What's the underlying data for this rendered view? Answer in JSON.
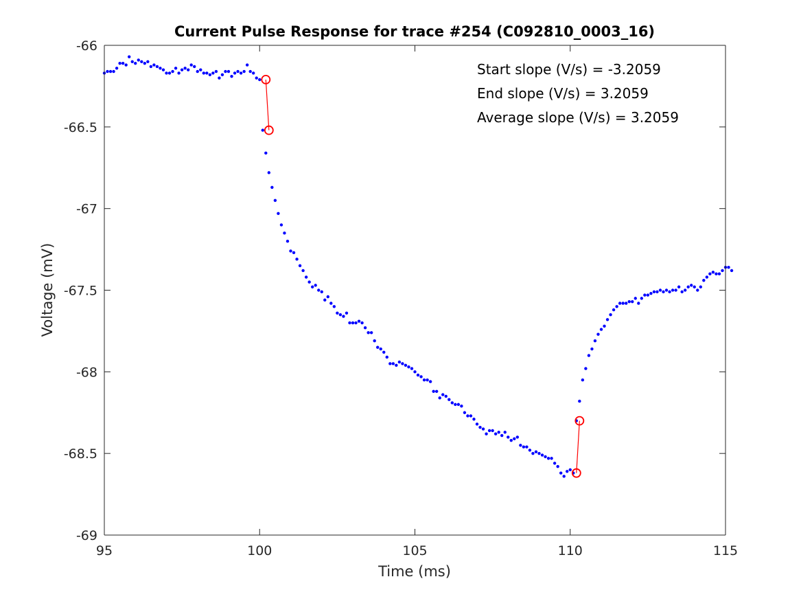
{
  "chart_data": {
    "type": "scatter",
    "title": "Current Pulse Response for trace #254 (C092810_0003_16)",
    "xlabel": "Time (ms)",
    "ylabel": "Voltage (mV)",
    "xlim": [
      95,
      115
    ],
    "ylim": [
      -69,
      -66
    ],
    "xticks": [
      95,
      100,
      105,
      110,
      115
    ],
    "yticks": [
      -69,
      -68.5,
      -68,
      -67.5,
      -67,
      -66.5,
      -66
    ],
    "xtick_labels": [
      "95",
      "100",
      "105",
      "110",
      "115"
    ],
    "ytick_labels": [
      "-69",
      "-68.5",
      "-68",
      "-67.5",
      "-67",
      "-66.5",
      "-66"
    ],
    "grid": false,
    "annotations": [
      "Start slope (V/s) = -3.2059",
      "End slope (V/s) = 3.2059",
      "Average slope (V/s) = 3.2059"
    ],
    "series_color": "#0000ff",
    "marker_color": "#ff0000",
    "trace": {
      "x_start": 95.0,
      "x_step": 0.1,
      "y": [
        -66.17,
        -66.16,
        -66.16,
        -66.16,
        -66.14,
        -66.11,
        -66.11,
        -66.12,
        -66.07,
        -66.1,
        -66.11,
        -66.09,
        -66.1,
        -66.11,
        -66.1,
        -66.13,
        -66.12,
        -66.13,
        -66.14,
        -66.15,
        -66.17,
        -66.17,
        -66.16,
        -66.14,
        -66.17,
        -66.15,
        -66.14,
        -66.15,
        -66.12,
        -66.13,
        -66.16,
        -66.15,
        -66.17,
        -66.17,
        -66.18,
        -66.17,
        -66.16,
        -66.2,
        -66.18,
        -66.16,
        -66.16,
        -66.19,
        -66.17,
        -66.16,
        -66.17,
        -66.16,
        -66.12,
        -66.16,
        -66.17,
        -66.2,
        -66.21,
        -66.52,
        -66.66,
        -66.78,
        -66.87,
        -66.95,
        -67.03,
        -67.1,
        -67.15,
        -67.2,
        -67.26,
        -67.27,
        -67.31,
        -67.35,
        -67.38,
        -67.42,
        -67.45,
        -67.48,
        -67.47,
        -67.5,
        -67.51,
        -67.56,
        -67.54,
        -67.58,
        -67.6,
        -67.64,
        -67.65,
        -67.66,
        -67.64,
        -67.7,
        -67.7,
        -67.7,
        -67.69,
        -67.7,
        -67.73,
        -67.76,
        -67.76,
        -67.81,
        -67.85,
        -67.86,
        -67.88,
        -67.91,
        -67.95,
        -67.95,
        -67.96,
        -67.94,
        -67.95,
        -67.96,
        -67.97,
        -67.98,
        -68.0,
        -68.02,
        -68.03,
        -68.05,
        -68.05,
        -68.06,
        -68.12,
        -68.12,
        -68.16,
        -68.14,
        -68.15,
        -68.17,
        -68.19,
        -68.2,
        -68.2,
        -68.21,
        -68.25,
        -68.27,
        -68.27,
        -68.29,
        -68.32,
        -68.34,
        -68.35,
        -68.38,
        -68.36,
        -68.36,
        -68.38,
        -68.37,
        -68.39,
        -68.37,
        -68.4,
        -68.42,
        -68.41,
        -68.4,
        -68.45,
        -68.46,
        -68.46,
        -68.48,
        -68.5,
        -68.49,
        -68.5,
        -68.51,
        -68.52,
        -68.53,
        -68.53,
        -68.56,
        -68.58,
        -68.62,
        -68.64,
        -68.61,
        -68.6,
        -68.62,
        -68.3,
        -68.18,
        -68.05,
        -67.98,
        -67.9,
        -67.86,
        -67.81,
        -67.77,
        -67.74,
        -67.72,
        -67.68,
        -67.65,
        -67.62,
        -67.6,
        -67.58,
        -67.58,
        -67.58,
        -67.57,
        -67.57,
        -67.55,
        -67.58,
        -67.55,
        -67.53,
        -67.53,
        -67.52,
        -67.51,
        -67.51,
        -67.5,
        -67.51,
        -67.5,
        -67.51,
        -67.5,
        -67.5,
        -67.48,
        -67.51,
        -67.5,
        -67.48,
        -67.47,
        -67.48,
        -67.5,
        -67.48,
        -67.44,
        -67.42,
        -67.4,
        -67.39,
        -67.4,
        -67.4,
        -67.38,
        -67.36,
        -67.36,
        -67.38
      ]
    },
    "markers": [
      {
        "x": 100.2,
        "y": -66.21
      },
      {
        "x": 100.3,
        "y": -66.52
      },
      {
        "x": 110.2,
        "y": -68.62
      },
      {
        "x": 110.3,
        "y": -68.3
      }
    ]
  }
}
